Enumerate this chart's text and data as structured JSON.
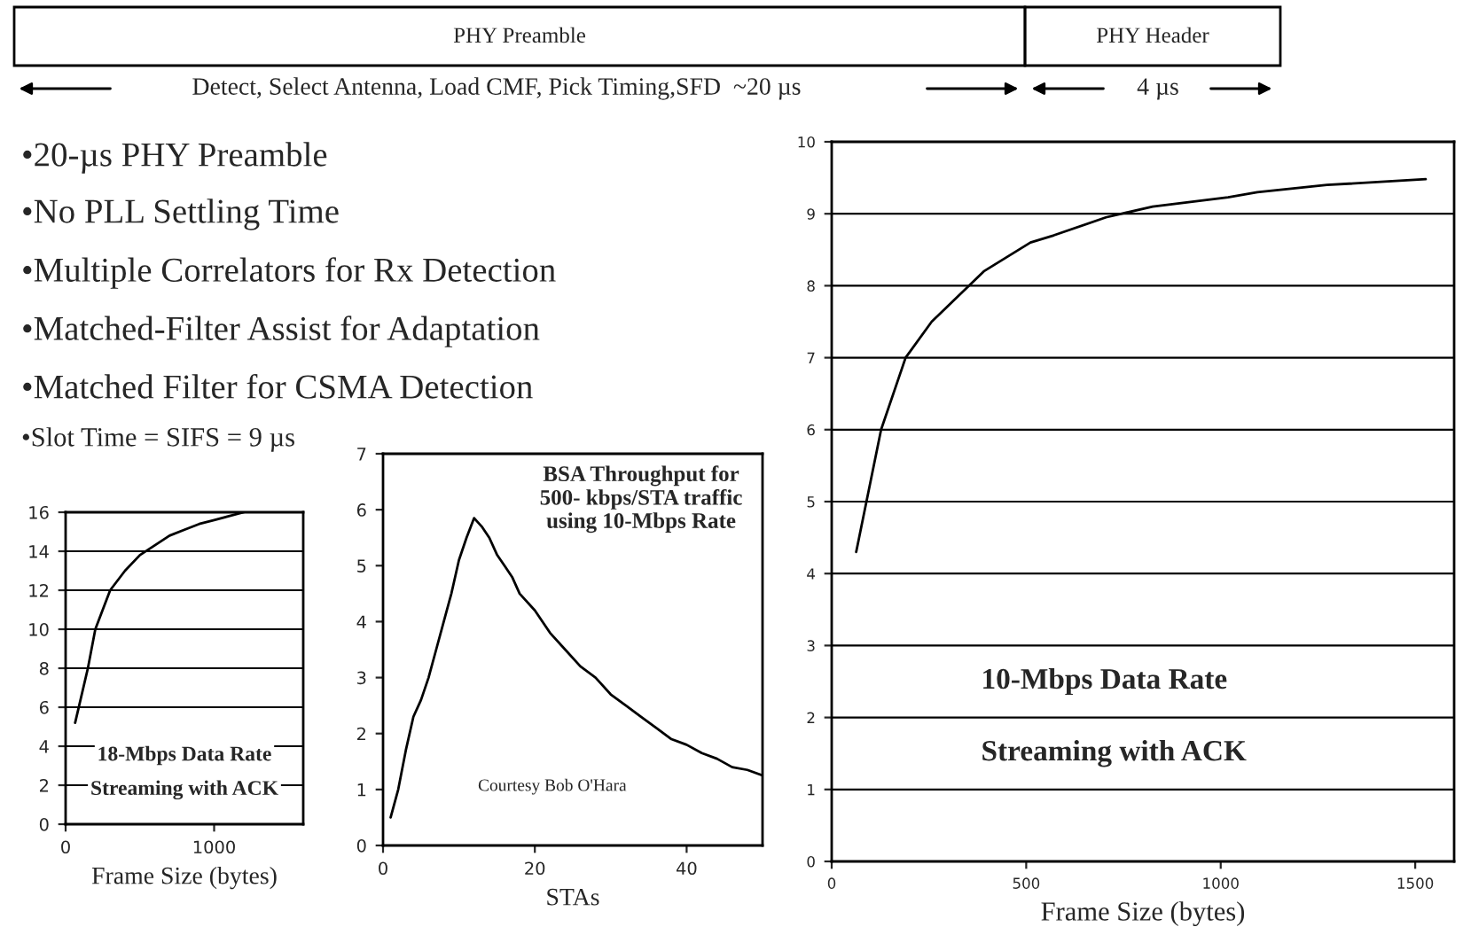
{
  "chart_data": [
    {
      "type": "other",
      "annotations": [
        "PHY Preamble",
        "PHY Header",
        "Detect, Select Antenna, Load CMF, Pick Timing,SFD  ~20 µs",
        "4 µs",
        "•20-µs PHY Preamble",
        "•No PLL Settling Time",
        "•Multiple Correlators for Rx Detection",
        "•Matched-Filter Assist for Adaptation",
        "•Matched Filter for CSMA Detection",
        "•Slot Time = SIFS = 9 µs"
      ]
    },
    {
      "type": "line",
      "xlabel": "Frame Size (bytes)",
      "annotations": [
        "18-Mbps Data Rate",
        "Streaming with ACK"
      ],
      "x": [
        64,
        150,
        200,
        300,
        400,
        500,
        600,
        700,
        800,
        900,
        1000,
        1100,
        1200
      ],
      "values": [
        5.2,
        8,
        10,
        12,
        13,
        13.8,
        14.3,
        14.8,
        15.1,
        15.4,
        15.6,
        15.8,
        16
      ],
      "color": "#000000",
      "xlim": [
        0,
        1600
      ],
      "xticks": [
        0,
        1000
      ],
      "ylim": [
        0,
        16
      ],
      "yticks": [
        0,
        2,
        4,
        6,
        8,
        10,
        12,
        14,
        16
      ],
      "grid": "y"
    },
    {
      "type": "line",
      "title": "BSA Throughput for\n500- kbps/STA traffic\nusing 10-Mbps Rate",
      "xlabel": "STAs",
      "annotations": [
        "Courtesy Bob O'Hara"
      ],
      "x": [
        1,
        2,
        3,
        4,
        5,
        6,
        7,
        8,
        9,
        10,
        11,
        12,
        13,
        14,
        15,
        16,
        17,
        18,
        20,
        22,
        24,
        26,
        28,
        30,
        32,
        34,
        36,
        38,
        40,
        42,
        44,
        46,
        48,
        50
      ],
      "values": [
        0.5,
        1.0,
        1.7,
        2.3,
        2.6,
        3.0,
        3.5,
        4.0,
        4.5,
        5.1,
        5.5,
        5.85,
        5.7,
        5.5,
        5.2,
        5.0,
        4.8,
        4.5,
        4.2,
        3.8,
        3.5,
        3.2,
        3.0,
        2.7,
        2.5,
        2.3,
        2.1,
        1.9,
        1.8,
        1.65,
        1.55,
        1.4,
        1.35,
        1.25
      ],
      "color": "#000000",
      "xlim": [
        0,
        50
      ],
      "xticks": [
        0,
        20,
        40
      ],
      "ylim": [
        0,
        7
      ],
      "yticks": [
        0,
        1,
        2,
        3,
        4,
        5,
        6,
        7
      ]
    },
    {
      "type": "line",
      "xlabel": "Frame Size (bytes)",
      "annotations": [
        "10-Mbps Data Rate",
        "Streaming with ACK"
      ],
      "x": [
        63,
        127,
        190,
        257,
        391,
        511,
        571,
        705,
        825,
        1019,
        1094,
        1273,
        1527
      ],
      "values": [
        4.3,
        6.0,
        7.0,
        7.5,
        8.2,
        8.6,
        8.7,
        8.95,
        9.1,
        9.23,
        9.3,
        9.4,
        9.48
      ],
      "color": "#000000",
      "xlim": [
        0,
        1600
      ],
      "xticks": [
        0,
        500,
        1000,
        1500
      ],
      "ylim": [
        0,
        10
      ],
      "yticks": [
        0,
        1,
        2,
        3,
        4,
        5,
        6,
        7,
        8,
        9,
        10
      ],
      "grid": "y"
    }
  ]
}
